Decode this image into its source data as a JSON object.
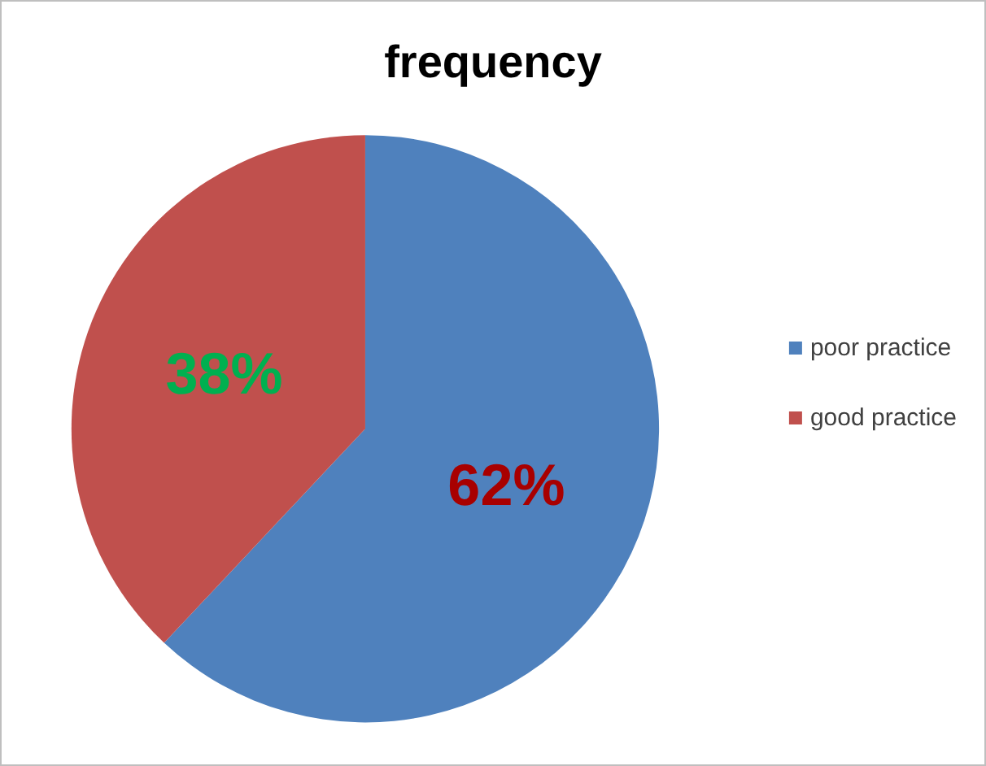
{
  "chart_data": {
    "type": "pie",
    "title": "frequency",
    "categories": [
      "poor practice",
      "good practice"
    ],
    "values": [
      62,
      38
    ],
    "colors": [
      "#4f81bd",
      "#c0504d"
    ],
    "value_labels": [
      "62%",
      "38%"
    ],
    "legend": "right"
  }
}
